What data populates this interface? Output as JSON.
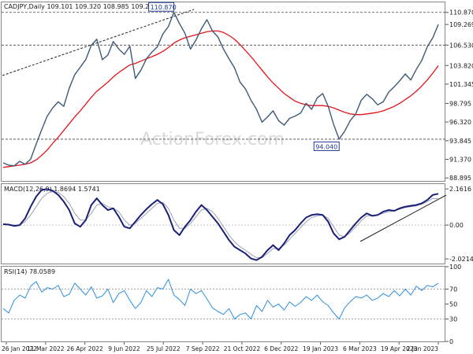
{
  "chart_data": [
    {
      "panel": "price",
      "type": "line",
      "title": "CADJPY,Daily  109.101 109.320 108.985 109.269",
      "ylim": [
        88.5,
        112.2
      ],
      "y_ticks": [
        "88.895",
        "91.370",
        "93.845",
        "96.320",
        "98.795",
        "101.345",
        "103.820",
        "106.530",
        "109.269",
        "110.870"
      ],
      "x_labels": [
        "26 Jan 2022",
        "11 Mar 2022",
        "26 Apr 2022",
        "9 Jun 2022",
        "25 Jul 2022",
        "7 Sep 2022",
        "21 Oct 2022",
        "6 Dec 2022",
        "19 Jan 2023",
        "6 Mar 2023",
        "19 Apr 2023",
        "2 Jun 2023"
      ],
      "series": [
        {
          "values": [
            90.9,
            90.6,
            90.5,
            91.1,
            90.7,
            91.4,
            93.4,
            95.3,
            97.1,
            98.2,
            99.0,
            98.4,
            100.8,
            102.6,
            103.6,
            104.6,
            106.5,
            107.3,
            104.6,
            105.2,
            107.0,
            106.0,
            105.3,
            106.4,
            102.1,
            103.2,
            104.7,
            105.6,
            106.3,
            108.0,
            109.0,
            110.87,
            109.4,
            108.1,
            106.0,
            107.2,
            108.7,
            109.9,
            108.4,
            107.6,
            106.0,
            104.7,
            103.5,
            101.6,
            100.7,
            99.2,
            98.0,
            96.3,
            97.0,
            97.8,
            96.5,
            95.9,
            96.8,
            97.1,
            97.5,
            98.8,
            98.0,
            99.5,
            100.1,
            98.4,
            96.0,
            94.04,
            95.1,
            96.5,
            97.4,
            99.2,
            100.0,
            99.4,
            98.6,
            99.0,
            100.3,
            101.0,
            101.8,
            102.7,
            101.9,
            103.3,
            104.5,
            106.3,
            107.5,
            109.269
          ]
        },
        {
          "values": [
            90.3,
            90.4,
            90.5,
            90.6,
            90.7,
            90.9,
            91.3,
            91.9,
            92.6,
            93.5,
            94.3,
            95.2,
            96.1,
            97.0,
            97.8,
            98.7,
            99.6,
            100.4,
            101.0,
            101.6,
            102.3,
            102.9,
            103.4,
            103.9,
            104.1,
            104.4,
            104.7,
            105.0,
            105.3,
            105.7,
            106.2,
            106.8,
            107.2,
            107.5,
            107.7,
            107.9,
            108.1,
            108.3,
            108.4,
            108.4,
            108.2,
            107.8,
            107.3,
            106.6,
            105.8,
            105.0,
            104.1,
            103.2,
            102.3,
            101.5,
            100.8,
            100.1,
            99.6,
            99.1,
            98.8,
            98.6,
            98.5,
            98.5,
            98.5,
            98.4,
            98.2,
            97.9,
            97.6,
            97.4,
            97.3,
            97.3,
            97.4,
            97.5,
            97.6,
            97.8,
            98.1,
            98.4,
            98.8,
            99.3,
            99.8,
            100.4,
            101.1,
            101.9,
            102.8,
            103.8
          ]
        }
      ],
      "colors": [
        "#3d5a78",
        "#e0161c"
      ],
      "levels": [
        "110.870",
        "106.530",
        "94.040"
      ],
      "annotations": [
        "110.870",
        "94.040"
      ]
    },
    {
      "panel": "macd",
      "type": "line",
      "title": "MACD(12,26,9) 1.8694 1.5741",
      "ylim": [
        -2.3,
        2.45
      ],
      "y_ticks": [
        "2.1616",
        "0.00",
        "-2.0214"
      ],
      "series": [
        {
          "values": [
            0.05,
            0.03,
            -0.05,
            0.0,
            0.4,
            1.1,
            1.7,
            2.1,
            2.15,
            2.05,
            1.8,
            1.4,
            0.9,
            0.1,
            -0.1,
            0.3,
            1.2,
            1.6,
            1.2,
            0.9,
            1.0,
            0.5,
            -0.1,
            -0.2,
            0.2,
            0.6,
            0.95,
            1.25,
            1.5,
            1.25,
            0.6,
            -0.3,
            -0.6,
            -0.1,
            0.3,
            0.8,
            1.2,
            0.9,
            0.5,
            0.1,
            -0.4,
            -0.9,
            -1.3,
            -1.5,
            -1.7,
            -2.0,
            -2.1,
            -1.9,
            -1.5,
            -1.2,
            -1.5,
            -1.1,
            -0.6,
            -0.3,
            0.1,
            0.45,
            0.6,
            0.65,
            0.6,
            0.2,
            -0.5,
            -0.85,
            -0.7,
            -0.3,
            0.1,
            0.45,
            0.7,
            0.55,
            0.6,
            0.8,
            0.9,
            0.85,
            1.0,
            1.1,
            1.15,
            1.2,
            1.3,
            1.5,
            1.8,
            1.87
          ]
        },
        {
          "values": [
            0.05,
            0.04,
            0.0,
            0.0,
            0.2,
            0.6,
            1.1,
            1.6,
            1.9,
            2.0,
            1.95,
            1.7,
            1.3,
            0.7,
            0.3,
            0.3,
            0.7,
            1.2,
            1.3,
            1.1,
            1.0,
            0.8,
            0.3,
            0.0,
            0.1,
            0.4,
            0.7,
            1.0,
            1.3,
            1.35,
            1.0,
            0.3,
            -0.2,
            -0.2,
            0.1,
            0.5,
            0.9,
            1.0,
            0.8,
            0.4,
            -0.1,
            -0.6,
            -1.0,
            -1.3,
            -1.5,
            -1.75,
            -1.95,
            -1.95,
            -1.7,
            -1.4,
            -1.4,
            -1.2,
            -0.85,
            -0.5,
            -0.15,
            0.2,
            0.45,
            0.55,
            0.6,
            0.4,
            -0.1,
            -0.6,
            -0.7,
            -0.45,
            -0.1,
            0.25,
            0.55,
            0.55,
            0.6,
            0.7,
            0.8,
            0.85,
            0.95,
            1.05,
            1.1,
            1.15,
            1.25,
            1.4,
            1.6,
            1.57
          ]
        }
      ],
      "colors": [
        "#1b1f7a",
        "#9aa2b4"
      ]
    },
    {
      "panel": "rsi",
      "type": "line",
      "title": "RSI(14) 78.0589",
      "ylim": [
        0,
        100
      ],
      "y_ticks": [
        "100",
        "70",
        "50",
        "30",
        "0"
      ],
      "series": [
        {
          "values": [
            44,
            38,
            55,
            62,
            58,
            74,
            80,
            66,
            72,
            70,
            75,
            60,
            63,
            78,
            70,
            62,
            73,
            58,
            61,
            70,
            52,
            64,
            68,
            55,
            44,
            52,
            68,
            60,
            72,
            70,
            83,
            62,
            56,
            48,
            70,
            64,
            68,
            57,
            45,
            40,
            36,
            44,
            30,
            36,
            38,
            30,
            48,
            40,
            55,
            46,
            50,
            42,
            53,
            47,
            52,
            60,
            55,
            62,
            53,
            48,
            38,
            30,
            45,
            53,
            60,
            58,
            62,
            55,
            58,
            64,
            60,
            68,
            61,
            70,
            62,
            74,
            68,
            75,
            73,
            78
          ]
        }
      ],
      "colors": [
        "#2e8fe0"
      ],
      "guides": [
        "70",
        "30"
      ]
    }
  ],
  "watermark": "ActionForex.com"
}
